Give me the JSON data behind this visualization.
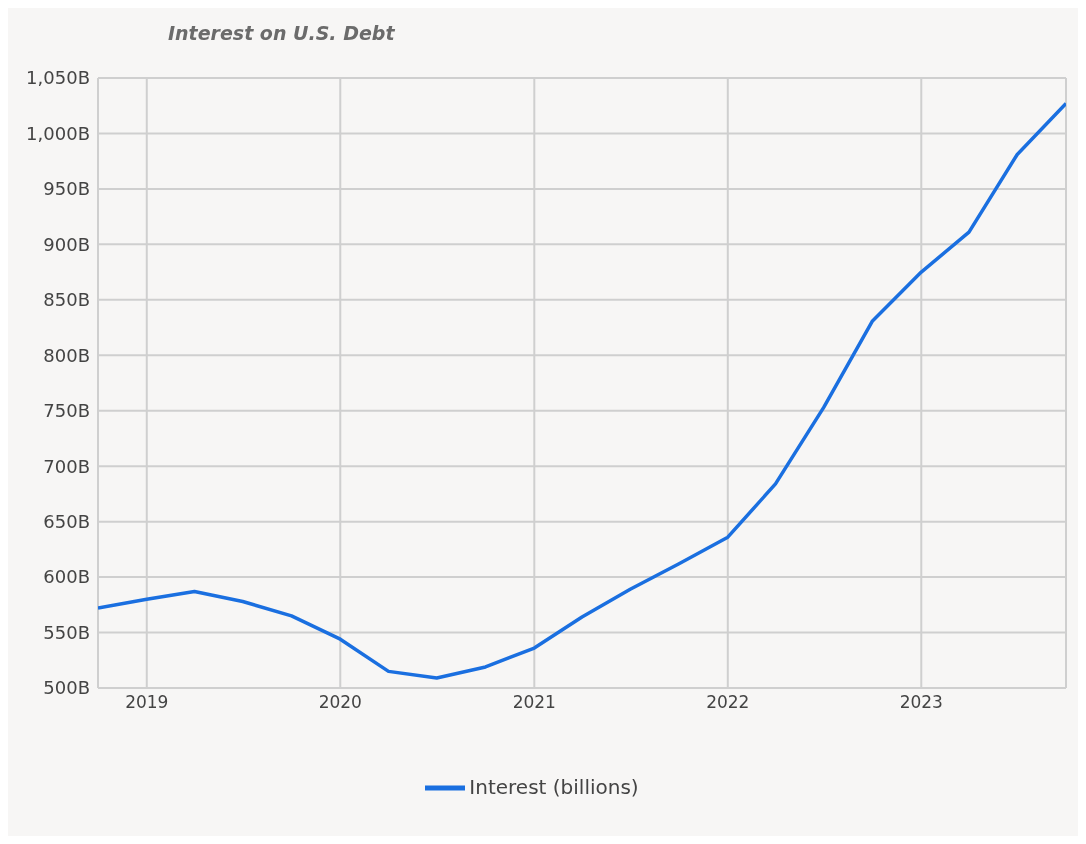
{
  "chart_data": {
    "type": "line",
    "title": "Interest on U.S. Debt",
    "x": [
      "2018-10",
      "2019-01",
      "2019-04",
      "2019-07",
      "2019-10",
      "2020-01",
      "2020-04",
      "2020-07",
      "2020-10",
      "2021-01",
      "2021-04",
      "2021-07",
      "2021-10",
      "2022-01",
      "2022-04",
      "2022-07",
      "2022-10",
      "2023-01",
      "2023-04",
      "2023-07",
      "2023-10"
    ],
    "series": [
      {
        "name": "Interest (billions)",
        "color": "#1a6fe0",
        "values": [
          572,
          580,
          587,
          578,
          565,
          544,
          515,
          509,
          519,
          536,
          564,
          589,
          612,
          636,
          684,
          753,
          831,
          875,
          911,
          981,
          1027
        ]
      }
    ],
    "xlim": [
      "2018-10",
      "2023-10"
    ],
    "xticks": [
      {
        "value": "2019-01",
        "label": "2019"
      },
      {
        "value": "2020-01",
        "label": "2020"
      },
      {
        "value": "2021-01",
        "label": "2021"
      },
      {
        "value": "2022-01",
        "label": "2022"
      },
      {
        "value": "2023-01",
        "label": "2023"
      }
    ],
    "ylim": [
      500,
      1050
    ],
    "yticks": [
      {
        "value": 500,
        "label": "500B"
      },
      {
        "value": 550,
        "label": "550B"
      },
      {
        "value": 600,
        "label": "600B"
      },
      {
        "value": 650,
        "label": "650B"
      },
      {
        "value": 700,
        "label": "700B"
      },
      {
        "value": 750,
        "label": "750B"
      },
      {
        "value": 800,
        "label": "800B"
      },
      {
        "value": 850,
        "label": "850B"
      },
      {
        "value": 900,
        "label": "900B"
      },
      {
        "value": 950,
        "label": "950B"
      },
      {
        "value": 1000,
        "label": "1,000B"
      },
      {
        "value": 1050,
        "label": "1,050B"
      }
    ],
    "grid": true,
    "legend": "bottom",
    "marker": "none",
    "line_style": "solid"
  }
}
